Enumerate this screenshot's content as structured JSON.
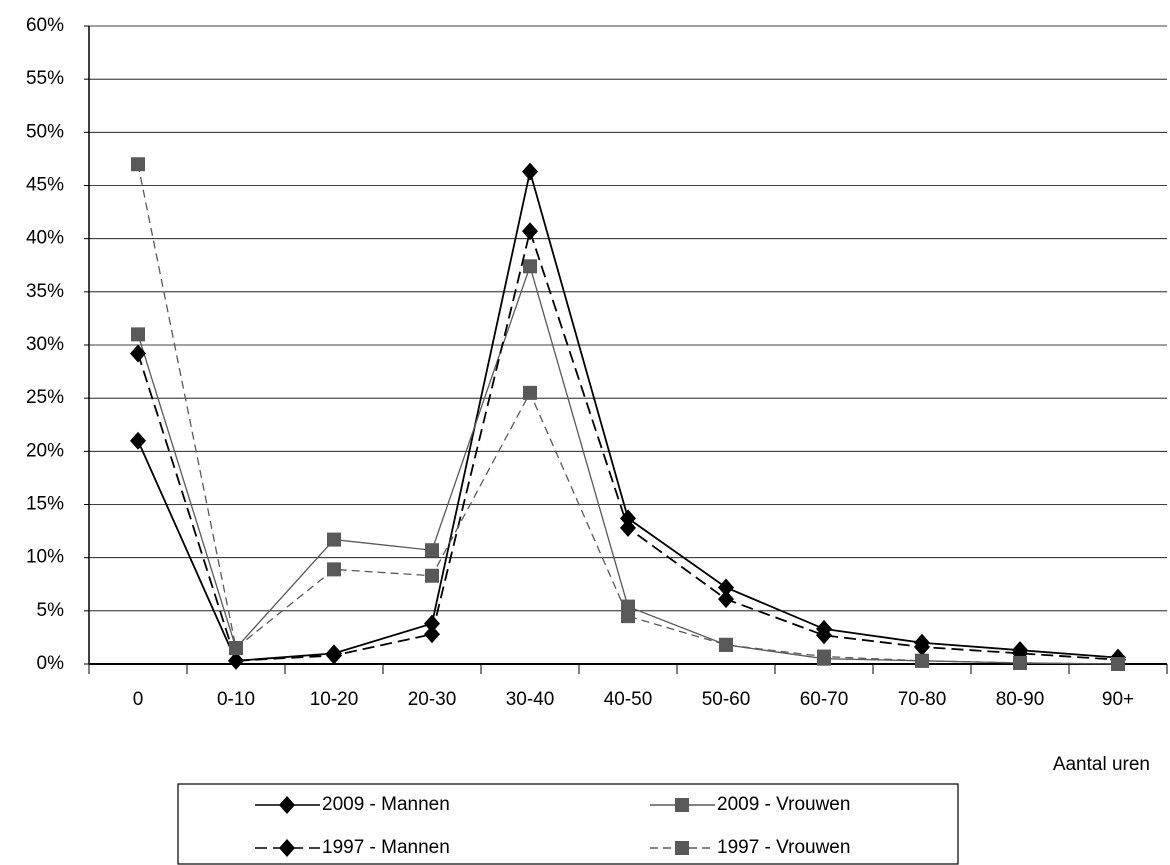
{
  "chart_data": {
    "type": "line",
    "categories": [
      "0",
      "0-10",
      "10-20",
      "20-30",
      "30-40",
      "40-50",
      "50-60",
      "60-70",
      "70-80",
      "80-90",
      "90+"
    ],
    "x_label": "Aantal uren",
    "series": [
      {
        "name": "2009 - Mannen",
        "color": "#000000",
        "line_style": "solid",
        "marker": "diamond",
        "values": [
          21,
          0.3,
          1,
          3.8,
          46.3,
          13.7,
          7.2,
          3.3,
          2,
          1.3,
          0.6
        ]
      },
      {
        "name": "2009 - Vrouwen",
        "color": "#595959",
        "line_style": "solid",
        "marker": "square",
        "values": [
          31,
          1.5,
          11.7,
          10.7,
          37.4,
          5.4,
          1.8,
          0.5,
          0.3,
          0.1,
          0
        ]
      },
      {
        "name": "1997 - Mannen",
        "color": "#000000",
        "line_style": "dashed",
        "marker": "diamond",
        "values": [
          29.2,
          0.3,
          0.8,
          2.8,
          40.7,
          12.8,
          6.1,
          2.7,
          1.6,
          1.0,
          0.4
        ]
      },
      {
        "name": "1997 - Vrouwen",
        "color": "#595959",
        "line_style": "dashed",
        "marker": "square",
        "values": [
          47,
          1.5,
          8.9,
          8.3,
          25.5,
          4.5,
          1.8,
          0.7,
          0.3,
          0.1,
          0
        ]
      }
    ],
    "ylim": [
      0,
      60
    ],
    "yticks": [
      {
        "value": 0,
        "label": "0%"
      },
      {
        "value": 5,
        "label": "5%"
      },
      {
        "value": 10,
        "label": "10%"
      },
      {
        "value": 15,
        "label": "15%"
      },
      {
        "value": 20,
        "label": "20%"
      },
      {
        "value": 25,
        "label": "25%"
      },
      {
        "value": 30,
        "label": "30%"
      },
      {
        "value": 35,
        "label": "35%"
      },
      {
        "value": 40,
        "label": "40%"
      },
      {
        "value": 45,
        "label": "45%"
      },
      {
        "value": 50,
        "label": "50%"
      },
      {
        "value": 55,
        "label": "55%"
      },
      {
        "value": 60,
        "label": "60%"
      }
    ],
    "grid": true
  }
}
